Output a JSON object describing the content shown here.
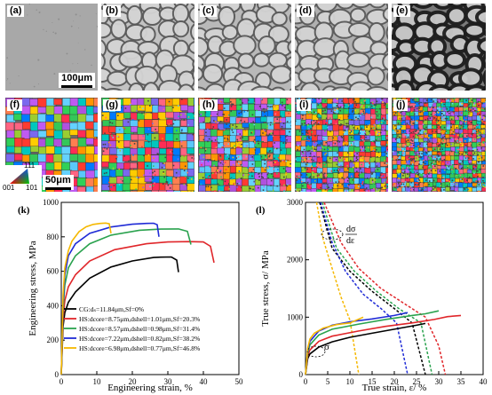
{
  "panels": {
    "a": "(a)",
    "b": "(b)",
    "c": "(c)",
    "d": "(d)",
    "e": "(e)",
    "f": "(f)",
    "g": "(g)",
    "h": "(h)",
    "i": "(i)",
    "j": "(j)",
    "k": "(k)",
    "l": "(l)"
  },
  "micrograph_tones": [
    "#a8a8a8",
    "#c2c2c2",
    "#b9b9b9",
    "#b0b0b0",
    "#7a7a7a"
  ],
  "scale_top": "100μm",
  "scale_bottom": "50μm",
  "ipf_legend": {
    "top": "111",
    "left": "001",
    "right": "101"
  },
  "chart_data": [
    {
      "type": "line",
      "panel": "k",
      "xlabel": "Engineering strain, %",
      "ylabel": "Engineering stress, MPa",
      "xlim": [
        0,
        50
      ],
      "ylim": [
        0,
        1000
      ],
      "xticks": [
        "0",
        "10",
        "20",
        "30",
        "40",
        "50"
      ],
      "yticks": [
        "0",
        "200",
        "400",
        "600",
        "800",
        "1000"
      ],
      "legend_position": "bottom-center",
      "series": [
        {
          "name": "CG:dₛ=11.84μm,Sf=0%",
          "color": "#000000",
          "x": [
            0,
            0.5,
            1,
            2,
            4,
            8,
            14,
            20,
            26,
            28,
            31,
            32.5,
            33
          ],
          "y": [
            0,
            280,
            360,
            420,
            480,
            560,
            625,
            660,
            680,
            682,
            683,
            665,
            595
          ]
        },
        {
          "name": "HS:dcore=8.75μm,dshell=1.01μm,Sf=20.3%",
          "color": "#e0262a",
          "x": [
            0,
            0.5,
            1,
            2,
            4,
            8,
            15,
            24,
            30,
            36,
            40,
            42,
            43
          ],
          "y": [
            0,
            330,
            430,
            510,
            580,
            660,
            725,
            760,
            770,
            772,
            770,
            745,
            650
          ]
        },
        {
          "name": "HS:dcore=8.57μm,dshell=0.98μm,Sf=31.4%",
          "color": "#2aa24e",
          "x": [
            0,
            0.5,
            1,
            2,
            4,
            8,
            14,
            22,
            28,
            33,
            35.5,
            36.5
          ],
          "y": [
            0,
            380,
            520,
            620,
            690,
            760,
            810,
            838,
            845,
            846,
            832,
            755
          ]
        },
        {
          "name": "HS:dcore=7.22μm,dshell=0.82μm,Sf=38.2%",
          "color": "#1f2bd6",
          "x": [
            0,
            0.5,
            1,
            2,
            4,
            8,
            14,
            20,
            24,
            26,
            27,
            27.5
          ],
          "y": [
            0,
            420,
            580,
            690,
            760,
            820,
            857,
            873,
            878,
            879,
            870,
            800
          ]
        },
        {
          "name": "HS:dcore=6.98μm,dshell=0.77μm,Sf=46.8%",
          "color": "#f5b800",
          "x": [
            0,
            0.5,
            1,
            2,
            3,
            5,
            7,
            9,
            11,
            12.5,
            13.5,
            14
          ],
          "y": [
            0,
            460,
            620,
            720,
            775,
            830,
            858,
            872,
            878,
            880,
            876,
            820
          ]
        }
      ]
    },
    {
      "type": "line",
      "panel": "l",
      "xlabel": "True strain, ε/ %",
      "ylabel": "True stress, σ/ MPa",
      "xlim": [
        0,
        40
      ],
      "ylim": [
        0,
        3000
      ],
      "xticks": [
        "0",
        "5",
        "10",
        "15",
        "20",
        "25",
        "30",
        "35",
        "40"
      ],
      "yticks": [
        "0",
        "1000",
        "2000",
        "3000"
      ],
      "annotations": {
        "sigma": "σ",
        "dsigma": "dσ",
        "deps": "dε"
      },
      "stress_series": [
        {
          "color": "#000000",
          "x": [
            0,
            0.5,
            1,
            3,
            6,
            10,
            15,
            20,
            25,
            27
          ],
          "y": [
            0,
            280,
            360,
            480,
            570,
            650,
            720,
            790,
            860,
            890
          ]
        },
        {
          "color": "#e0262a",
          "x": [
            0,
            0.5,
            1,
            3,
            6,
            12,
            18,
            24,
            29,
            32,
            35
          ],
          "y": [
            0,
            330,
            430,
            580,
            670,
            760,
            840,
            900,
            960,
            1010,
            1030
          ]
        },
        {
          "color": "#2aa24e",
          "x": [
            0,
            0.5,
            1,
            3,
            6,
            12,
            18,
            24,
            27,
            30
          ],
          "y": [
            0,
            380,
            520,
            690,
            790,
            880,
            960,
            1030,
            1060,
            1110
          ]
        },
        {
          "color": "#1f2bd6",
          "x": [
            0,
            0.5,
            1,
            3,
            6,
            10,
            15,
            20,
            23
          ],
          "y": [
            0,
            420,
            580,
            760,
            860,
            920,
            970,
            1030,
            1080
          ]
        },
        {
          "color": "#f5b800",
          "x": [
            0,
            0.5,
            1,
            2,
            4,
            7,
            10,
            13
          ],
          "y": [
            0,
            460,
            620,
            720,
            810,
            870,
            900,
            1000
          ]
        }
      ],
      "hardening_series": [
        {
          "color": "#000000",
          "x": [
            3.2,
            6,
            10,
            15,
            20,
            24,
            27
          ],
          "y": [
            3000,
            2200,
            1800,
            1450,
            1150,
            900,
            0
          ]
        },
        {
          "color": "#e0262a",
          "x": [
            4.2,
            8,
            12,
            17,
            22,
            27,
            30,
            31.5
          ],
          "y": [
            3000,
            2300,
            1850,
            1500,
            1250,
            1000,
            500,
            0
          ]
        },
        {
          "color": "#2aa24e",
          "x": [
            3.8,
            7,
            11,
            16,
            21,
            26,
            28.5
          ],
          "y": [
            3000,
            2200,
            1800,
            1450,
            1150,
            900,
            0
          ]
        },
        {
          "color": "#1f2bd6",
          "x": [
            3.4,
            6,
            9,
            13,
            17,
            20.5,
            23
          ],
          "y": [
            3000,
            2300,
            1800,
            1400,
            1150,
            900,
            0
          ]
        },
        {
          "color": "#f5b800",
          "x": [
            2.5,
            4,
            6,
            8,
            10,
            12
          ],
          "y": [
            3000,
            2350,
            1850,
            1350,
            950,
            0
          ]
        }
      ]
    }
  ]
}
